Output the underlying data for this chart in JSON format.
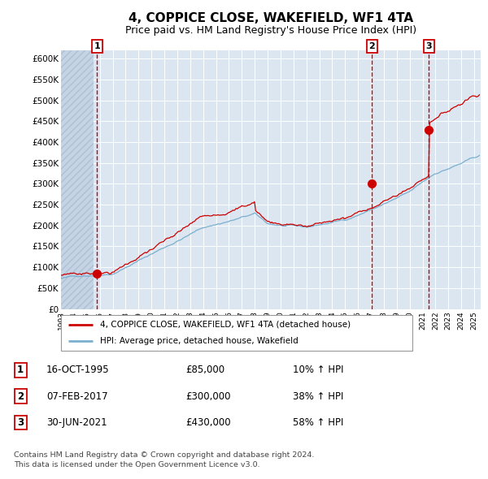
{
  "title": "4, COPPICE CLOSE, WAKEFIELD, WF1 4TA",
  "subtitle": "Price paid vs. HM Land Registry's House Price Index (HPI)",
  "title_fontsize": 11,
  "subtitle_fontsize": 9,
  "background_color": "#ffffff",
  "plot_bg_color": "#dce6f0",
  "grid_color": "#ffffff",
  "ylim": [
    0,
    620000
  ],
  "yticks": [
    0,
    50000,
    100000,
    150000,
    200000,
    250000,
    300000,
    350000,
    400000,
    450000,
    500000,
    550000,
    600000
  ],
  "red_line_color": "#cc0000",
  "blue_line_color": "#7aafcf",
  "vline1_x": 1995.79,
  "vline2_x": 2017.09,
  "vline3_x": 2021.49,
  "sale1_x": 1995.79,
  "sale1_y": 85000,
  "sale2_x": 2017.09,
  "sale2_y": 300000,
  "sale3_x": 2021.49,
  "sale3_y": 430000,
  "marker_color": "#cc0000",
  "marker_size": 7,
  "legend_label_red": "4, COPPICE CLOSE, WAKEFIELD, WF1 4TA (detached house)",
  "legend_label_blue": "HPI: Average price, detached house, Wakefield",
  "sale_entries": [
    {
      "num": "1",
      "date": "16-OCT-1995",
      "price": "£85,000",
      "hpi": "10% ↑ HPI"
    },
    {
      "num": "2",
      "date": "07-FEB-2017",
      "price": "£300,000",
      "hpi": "38% ↑ HPI"
    },
    {
      "num": "3",
      "date": "30-JUN-2021",
      "price": "£430,000",
      "hpi": "58% ↑ HPI"
    }
  ],
  "footer": "Contains HM Land Registry data © Crown copyright and database right 2024.\nThis data is licensed under the Open Government Licence v3.0.",
  "xmin": 1993.0,
  "xmax": 2025.5,
  "hatch_end": 1995.5
}
